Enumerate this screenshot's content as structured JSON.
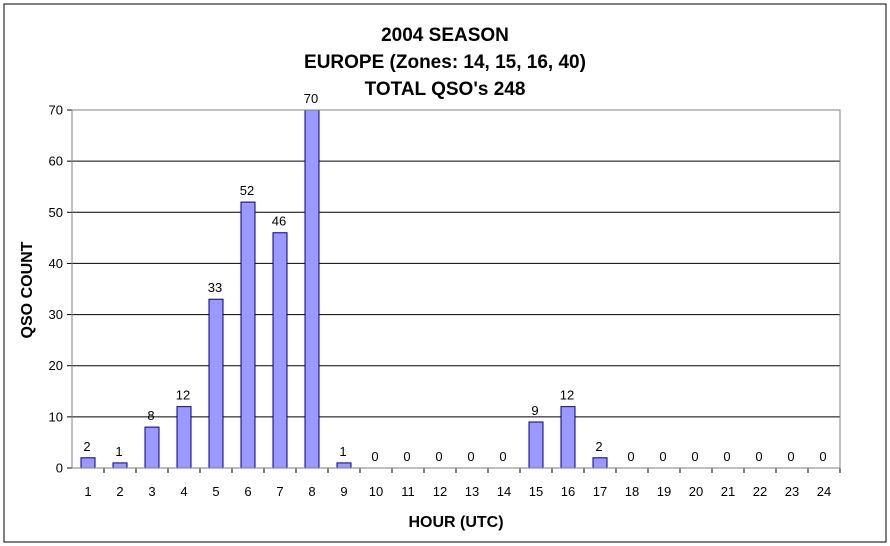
{
  "chart_data": {
    "type": "bar",
    "title": [
      "2004 SEASON",
      "EUROPE (Zones: 14, 15, 16, 40)",
      "TOTAL QSO's 248"
    ],
    "xlabel": "HOUR (UTC)",
    "ylabel": "QSO COUNT",
    "ylim": [
      0,
      70
    ],
    "yticks": [
      0,
      10,
      20,
      30,
      40,
      50,
      60,
      70
    ],
    "grid": true,
    "categories": [
      "1",
      "2",
      "3",
      "4",
      "5",
      "6",
      "7",
      "8",
      "9",
      "10",
      "11",
      "12",
      "13",
      "14",
      "15",
      "16",
      "17",
      "18",
      "19",
      "20",
      "21",
      "22",
      "23",
      "24"
    ],
    "values": [
      2,
      1,
      8,
      12,
      33,
      52,
      46,
      70,
      1,
      0,
      0,
      0,
      0,
      0,
      9,
      12,
      2,
      0,
      0,
      0,
      0,
      0,
      0,
      0
    ],
    "colors": {
      "bar_fill": "#9999ff",
      "bar_stroke": "#000080",
      "grid": "#000000",
      "border": "#000000"
    }
  }
}
